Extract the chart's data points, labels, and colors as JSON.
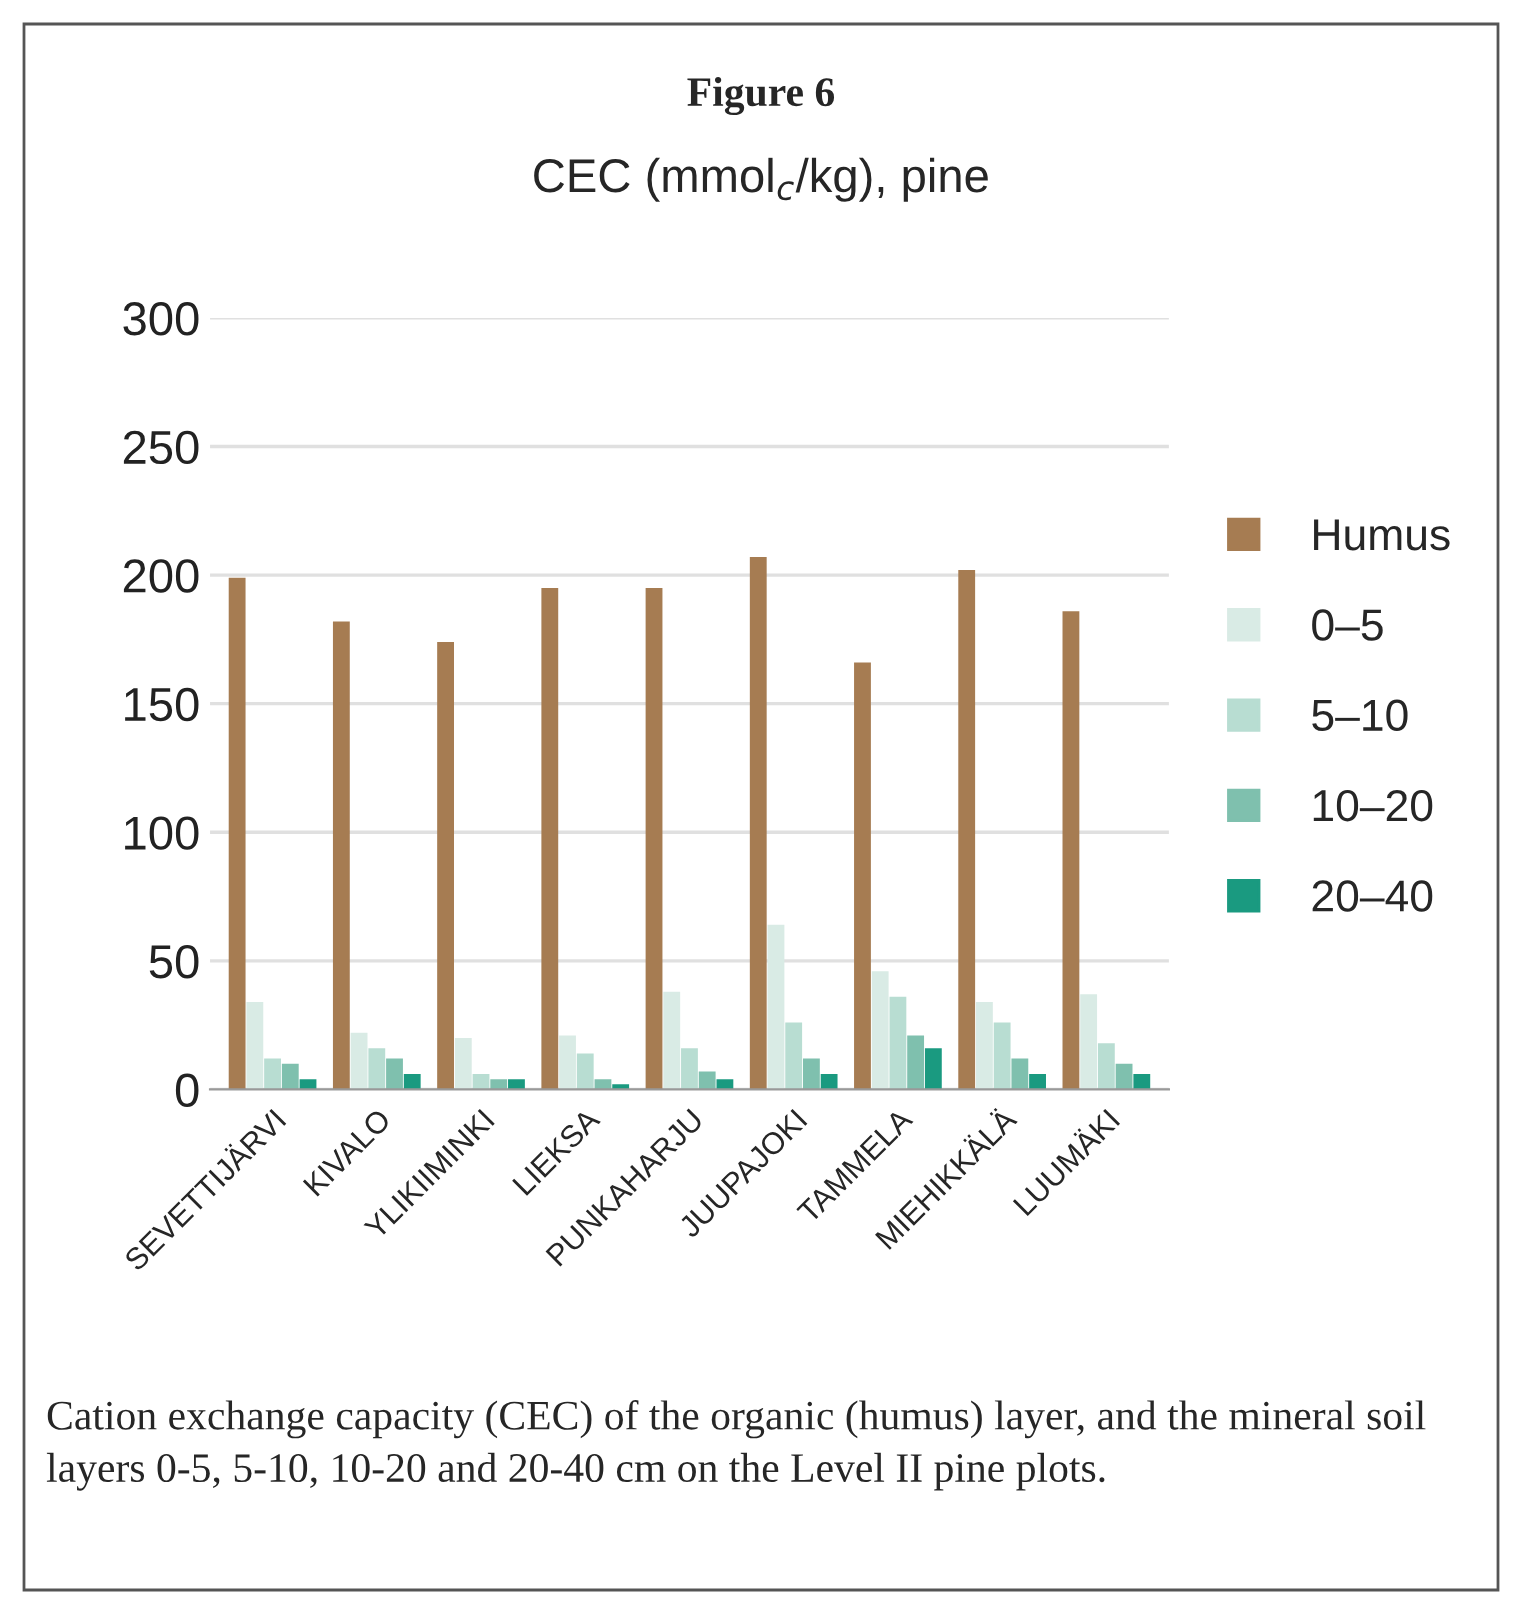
{
  "chart_data": {
    "type": "bar",
    "title": "Figure 6",
    "subtitle": "CEC (mmol$_{c}$/kg), pine",
    "categories": [
      "SEVETTIJÄRVI",
      "KIVALO",
      "YLIKIIMINKI",
      "LIEKSA",
      "PUNKAHARJU",
      "JUUPAJOKI",
      "TAMMELA",
      "MIEHIKKÄLÄ",
      "LUUMÄKI"
    ],
    "series": [
      {
        "name": "Humus",
        "color": "#a67c52",
        "values": [
          199,
          182,
          174,
          195,
          195,
          207,
          166,
          202,
          186
        ]
      },
      {
        "name": "0–5",
        "color": "#d9ebe5",
        "values": [
          34,
          22,
          20,
          21,
          38,
          64,
          46,
          34,
          37
        ]
      },
      {
        "name": "5–10",
        "color": "#b8ddd2",
        "values": [
          12,
          16,
          6,
          14,
          16,
          26,
          36,
          26,
          18
        ]
      },
      {
        "name": "10–20",
        "color": "#7fc0ae",
        "values": [
          10,
          12,
          4,
          4,
          7,
          12,
          21,
          12,
          10
        ]
      },
      {
        "name": "20–40",
        "color": "#1a9a80",
        "values": [
          4,
          6,
          4,
          2,
          4,
          6,
          16,
          6,
          6
        ]
      }
    ],
    "ylim": [
      0,
      300
    ],
    "yticks": [
      0,
      50,
      100,
      150,
      200,
      250,
      300
    ],
    "grid": "y",
    "legend": "right",
    "annotations": [
      "Cation exchange capacity (CEC) of the organic (humus) layer, and the mineral soil layers 0-5, 5-10, 10-20 and 20-40 cm on the Level II pine plots."
    ]
  }
}
